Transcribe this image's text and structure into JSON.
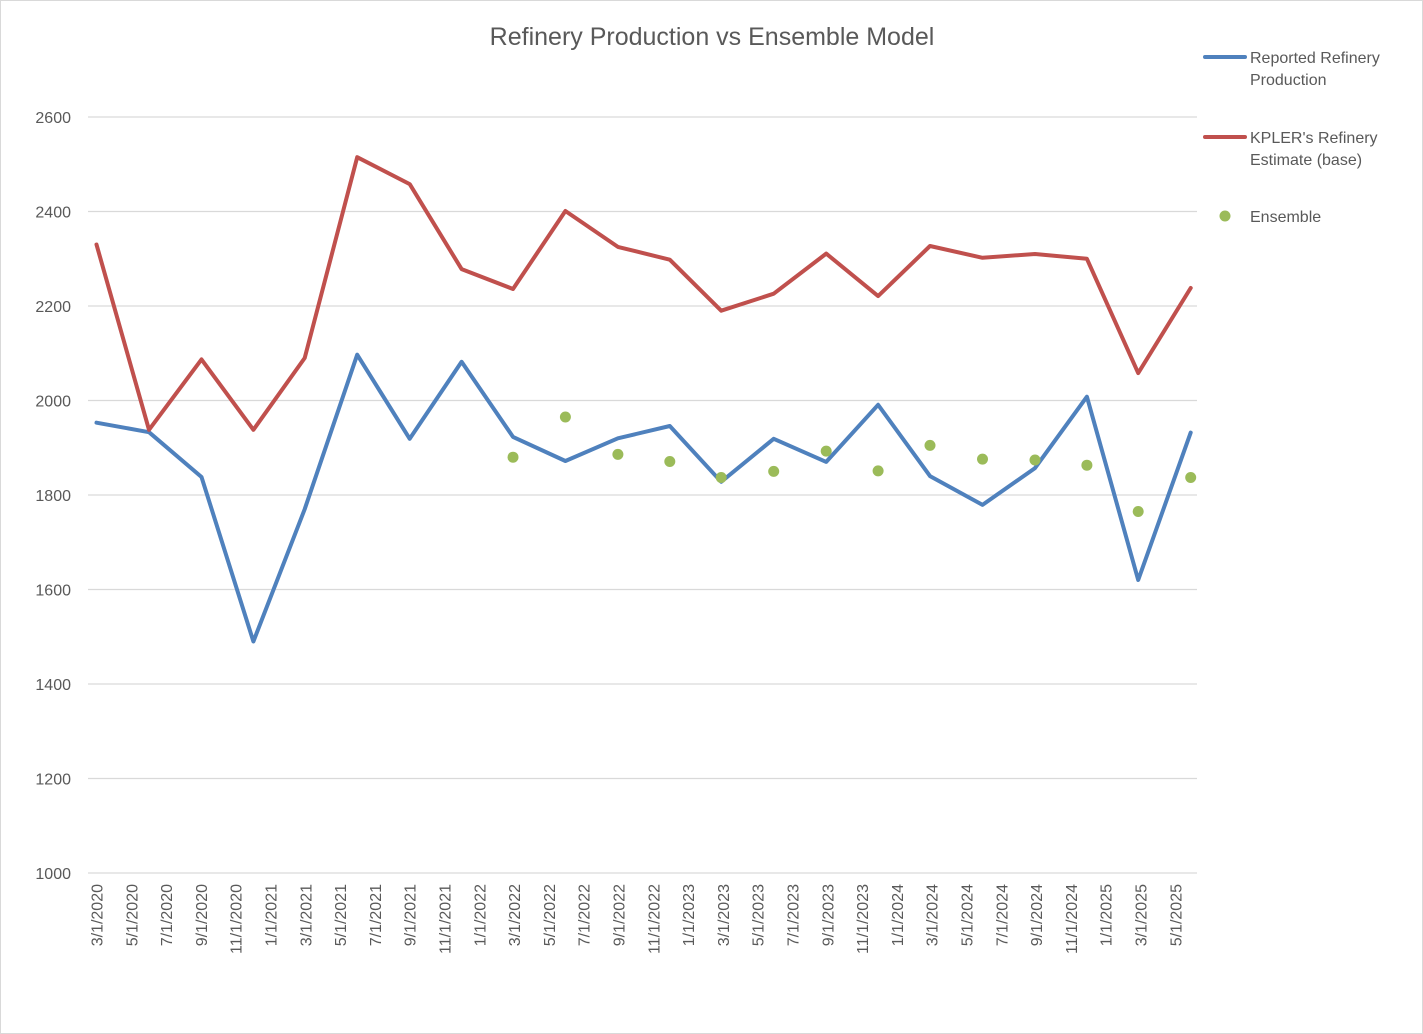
{
  "chart_data": {
    "type": "line",
    "title": "Refinery Production vs Ensemble Model",
    "xlabel": "",
    "ylabel": "",
    "ylim": [
      1000,
      2600
    ],
    "yticks": [
      1000,
      1200,
      1400,
      1600,
      1800,
      2000,
      2200,
      2400,
      2600
    ],
    "grid": true,
    "legend_position": "right",
    "x_tick_labels": [
      "3/1/2020",
      "5/1/2020",
      "7/1/2020",
      "9/1/2020",
      "11/1/2020",
      "1/1/2021",
      "3/1/2021",
      "5/1/2021",
      "7/1/2021",
      "9/1/2021",
      "11/1/2021",
      "1/1/2022",
      "3/1/2022",
      "5/1/2022",
      "7/1/2022",
      "9/1/2022",
      "11/1/2022",
      "1/1/2023",
      "3/1/2023",
      "5/1/2023",
      "7/1/2023",
      "9/1/2023",
      "11/1/2023",
      "1/1/2024",
      "3/1/2024",
      "5/1/2024",
      "7/1/2024",
      "9/1/2024",
      "11/1/2024",
      "1/1/2025",
      "3/1/2025",
      "5/1/2025"
    ],
    "x_dates": [
      "2020-03-01",
      "2020-06-01",
      "2020-09-01",
      "2020-12-01",
      "2021-03-01",
      "2021-06-01",
      "2021-09-01",
      "2021-12-01",
      "2022-03-01",
      "2022-06-01",
      "2022-09-01",
      "2022-12-01",
      "2023-03-01",
      "2023-06-01",
      "2023-09-01",
      "2023-12-01",
      "2024-03-01",
      "2024-06-01",
      "2024-09-01",
      "2024-12-01",
      "2025-03-01",
      "2025-06-01"
    ],
    "series": [
      {
        "name": "Reported Refinery Production",
        "color": "#4f81bd",
        "kind": "line",
        "values": [
          1953,
          1933,
          1838,
          1490,
          1770,
          2097,
          1919,
          2082,
          1923,
          1872,
          1920,
          1946,
          1828,
          1919,
          1870,
          1991,
          1840,
          1779,
          1857,
          2008,
          1620,
          1932
        ]
      },
      {
        "name": "KPLER's Refinery Estimate (base)",
        "color": "#c0504d",
        "kind": "line",
        "values": [
          2330,
          1938,
          2087,
          1938,
          2090,
          2515,
          2458,
          2278,
          2236,
          2401,
          2325,
          2298,
          2190,
          2226,
          2311,
          2221,
          2327,
          2302,
          2310,
          2300,
          2058,
          2238
        ]
      },
      {
        "name": "Ensemble",
        "color": "#9bbb59",
        "kind": "scatter",
        "values": [
          null,
          null,
          null,
          null,
          null,
          null,
          null,
          null,
          1880,
          1965,
          1886,
          1871,
          1837,
          1850,
          1893,
          1851,
          1905,
          1876,
          1874,
          1863,
          1765,
          1837
        ]
      }
    ]
  }
}
